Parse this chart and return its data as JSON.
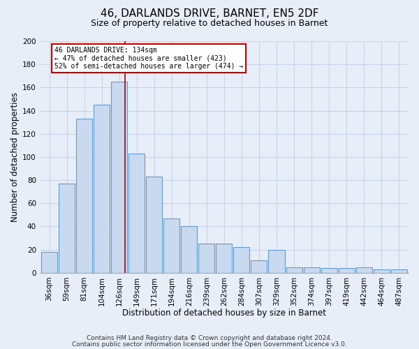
{
  "title": "46, DARLANDS DRIVE, BARNET, EN5 2DF",
  "subtitle": "Size of property relative to detached houses in Barnet",
  "xlabel": "Distribution of detached houses by size in Barnet",
  "ylabel": "Number of detached properties",
  "bar_labels": [
    "36sqm",
    "59sqm",
    "81sqm",
    "104sqm",
    "126sqm",
    "149sqm",
    "171sqm",
    "194sqm",
    "216sqm",
    "239sqm",
    "262sqm",
    "284sqm",
    "307sqm",
    "329sqm",
    "352sqm",
    "374sqm",
    "397sqm",
    "419sqm",
    "442sqm",
    "464sqm",
    "487sqm"
  ],
  "bar_heights": [
    18,
    77,
    133,
    145,
    165,
    103,
    83,
    47,
    40,
    25,
    25,
    22,
    11,
    20,
    5,
    5,
    4,
    4,
    5,
    3,
    3
  ],
  "bar_color": "#c9d9ef",
  "bar_edgecolor": "#6699cc",
  "ylim": [
    0,
    200
  ],
  "yticks": [
    0,
    20,
    40,
    60,
    80,
    100,
    120,
    140,
    160,
    180,
    200
  ],
  "vline_color": "#aa0000",
  "annotation_box_color": "#ffffff",
  "annotation_box_edgecolor": "#cc0000",
  "property_line_label": "46 DARLANDS DRIVE: 134sqm",
  "annotation_line1": "← 47% of detached houses are smaller (423)",
  "annotation_line2": "52% of semi-detached houses are larger (474) →",
  "background_color": "#e8eef8",
  "grid_color": "#c8d4e8",
  "footer1": "Contains HM Land Registry data © Crown copyright and database right 2024.",
  "footer2": "Contains public sector information licensed under the Open Government Licence v3.0."
}
